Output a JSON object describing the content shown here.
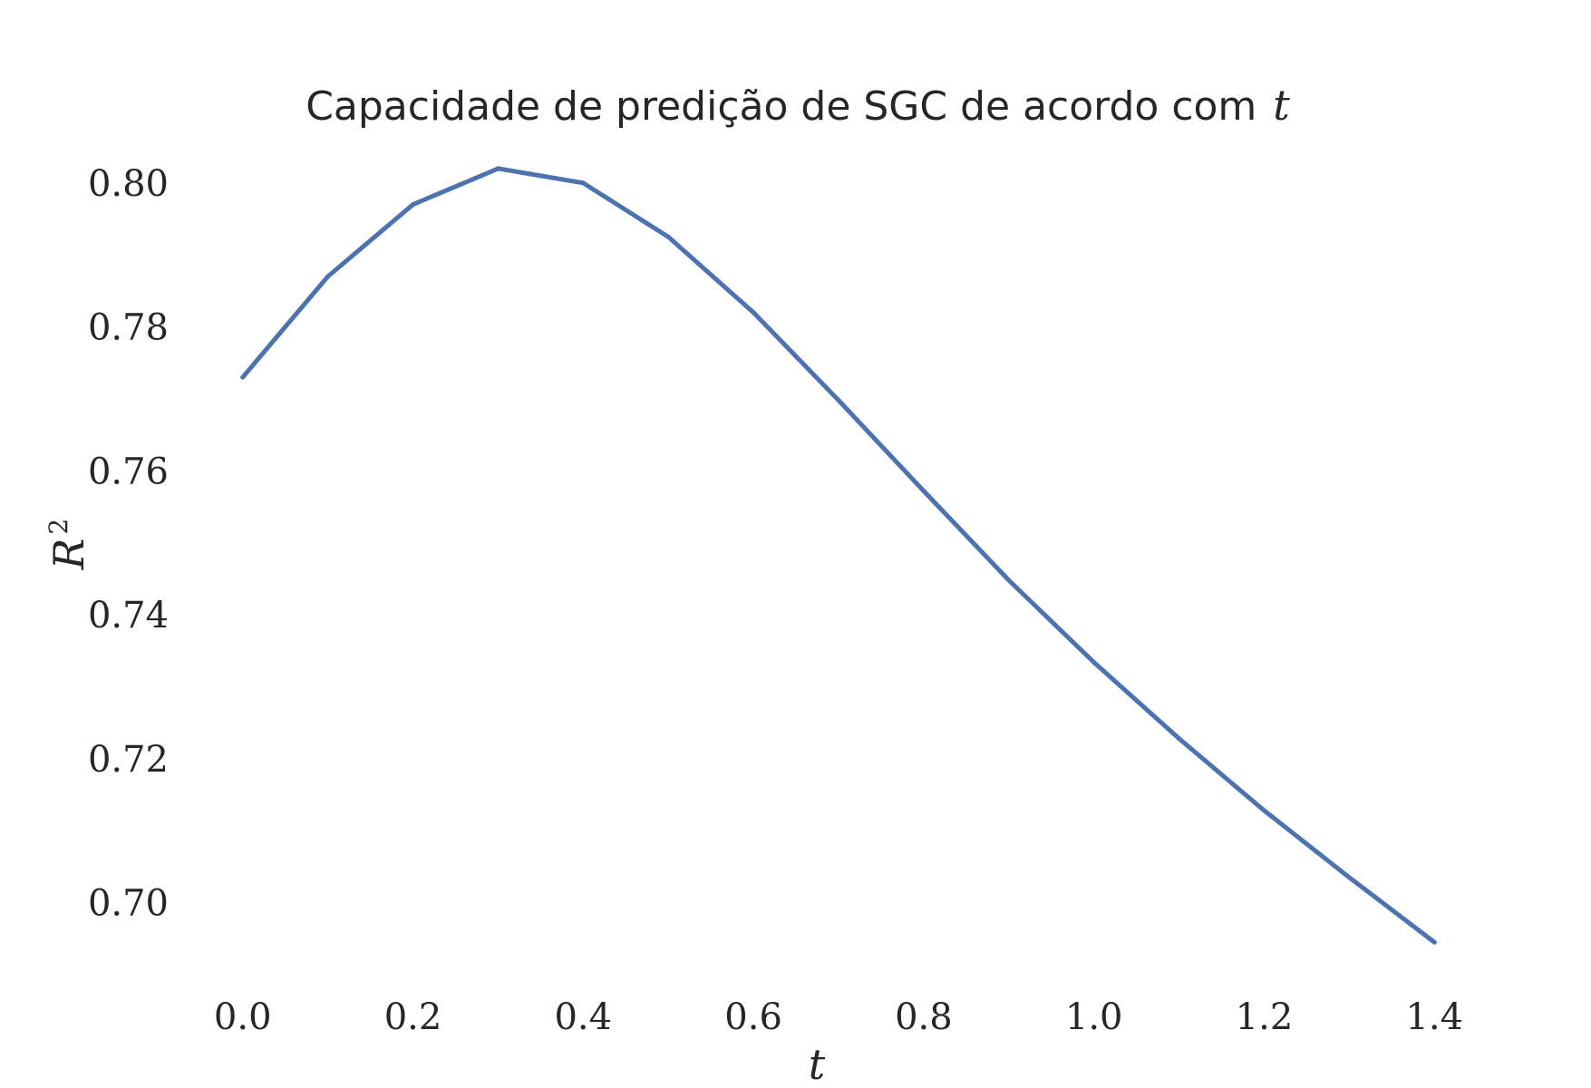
{
  "chart_data": {
    "type": "line",
    "title": "Capacidade de predição de SGC de acordo com",
    "title_variable": "t",
    "xlabel": "t",
    "ylabel": "R",
    "ylabel_superscript": "2",
    "x": [
      0.0,
      0.1,
      0.2,
      0.3,
      0.4,
      0.5,
      0.6,
      0.7,
      0.8,
      0.9,
      1.0,
      1.1,
      1.2,
      1.3,
      1.4
    ],
    "series": [
      {
        "values": [
          0.773,
          0.787,
          0.797,
          0.802,
          0.8,
          0.7925,
          0.782,
          0.7698,
          0.7572,
          0.7448,
          0.7334,
          0.7228,
          0.7128,
          0.7035,
          0.6945
        ],
        "color": "#4c72b0"
      }
    ],
    "xticks": [
      "0.0",
      "0.2",
      "0.4",
      "0.6",
      "0.8",
      "1.0",
      "1.2",
      "1.4"
    ],
    "xtick_values": [
      0.0,
      0.2,
      0.4,
      0.6,
      0.8,
      1.0,
      1.2,
      1.4
    ],
    "yticks": [
      "0.70",
      "0.72",
      "0.74",
      "0.76",
      "0.78",
      "0.80"
    ],
    "ytick_values": [
      0.7,
      0.72,
      0.74,
      0.76,
      0.78,
      0.8
    ],
    "xlim": [
      -0.07,
      1.47
    ],
    "ylim": [
      0.69,
      0.804
    ],
    "grid": false,
    "legend": "none"
  }
}
